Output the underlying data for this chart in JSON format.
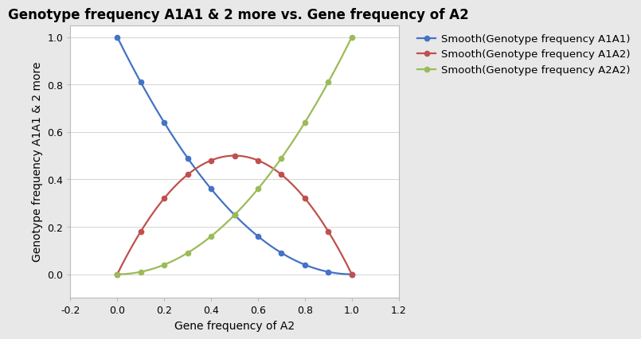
{
  "title": "Genotype frequency A1A1 & 2 more vs. Gene frequency of A2",
  "xlabel": "Gene frequency of A2",
  "ylabel": "Genotype frequency A1A1 & 2 more",
  "xlim": [
    -0.2,
    1.2
  ],
  "ylim": [
    -0.1,
    1.05
  ],
  "xticks": [
    -0.2,
    0.0,
    0.2,
    0.4,
    0.6,
    0.8,
    1.0,
    1.2
  ],
  "yticks": [
    0.0,
    0.2,
    0.4,
    0.6,
    0.8,
    1.0
  ],
  "blue_x": [
    0.0,
    0.1,
    0.2,
    0.3,
    0.4,
    0.5,
    0.6,
    0.7,
    0.8,
    0.9,
    1.0
  ],
  "blue_y": [
    1.0,
    0.81,
    0.64,
    0.49,
    0.36,
    0.25,
    0.16,
    0.09,
    0.04,
    0.01,
    0.0
  ],
  "red_x": [
    0.0,
    0.1,
    0.2,
    0.3,
    0.4,
    0.5,
    0.6,
    0.7,
    0.8,
    0.9,
    1.0
  ],
  "red_y": [
    0.0,
    0.18,
    0.32,
    0.42,
    0.48,
    0.5,
    0.48,
    0.42,
    0.32,
    0.18,
    0.0
  ],
  "green_x": [
    0.0,
    0.1,
    0.2,
    0.3,
    0.4,
    0.5,
    0.6,
    0.7,
    0.8,
    0.9,
    1.0
  ],
  "green_y": [
    0.0,
    0.01,
    0.04,
    0.09,
    0.16,
    0.25,
    0.36,
    0.49,
    0.64,
    0.81,
    1.0
  ],
  "blue_color": "#4472C4",
  "red_color": "#C0504D",
  "green_color": "#9BBB59",
  "legend_blue": "Smooth(Genotype frequency A1A1)",
  "legend_red": "Smooth(Genotype frequency A1A2)",
  "legend_green": "Smooth(Genotype frequency A2A2)",
  "bg_color": "#E8E8E8",
  "plot_bg_color": "#FFFFFF",
  "title_fontsize": 12,
  "label_fontsize": 10,
  "legend_fontsize": 9.5,
  "tick_fontsize": 9
}
